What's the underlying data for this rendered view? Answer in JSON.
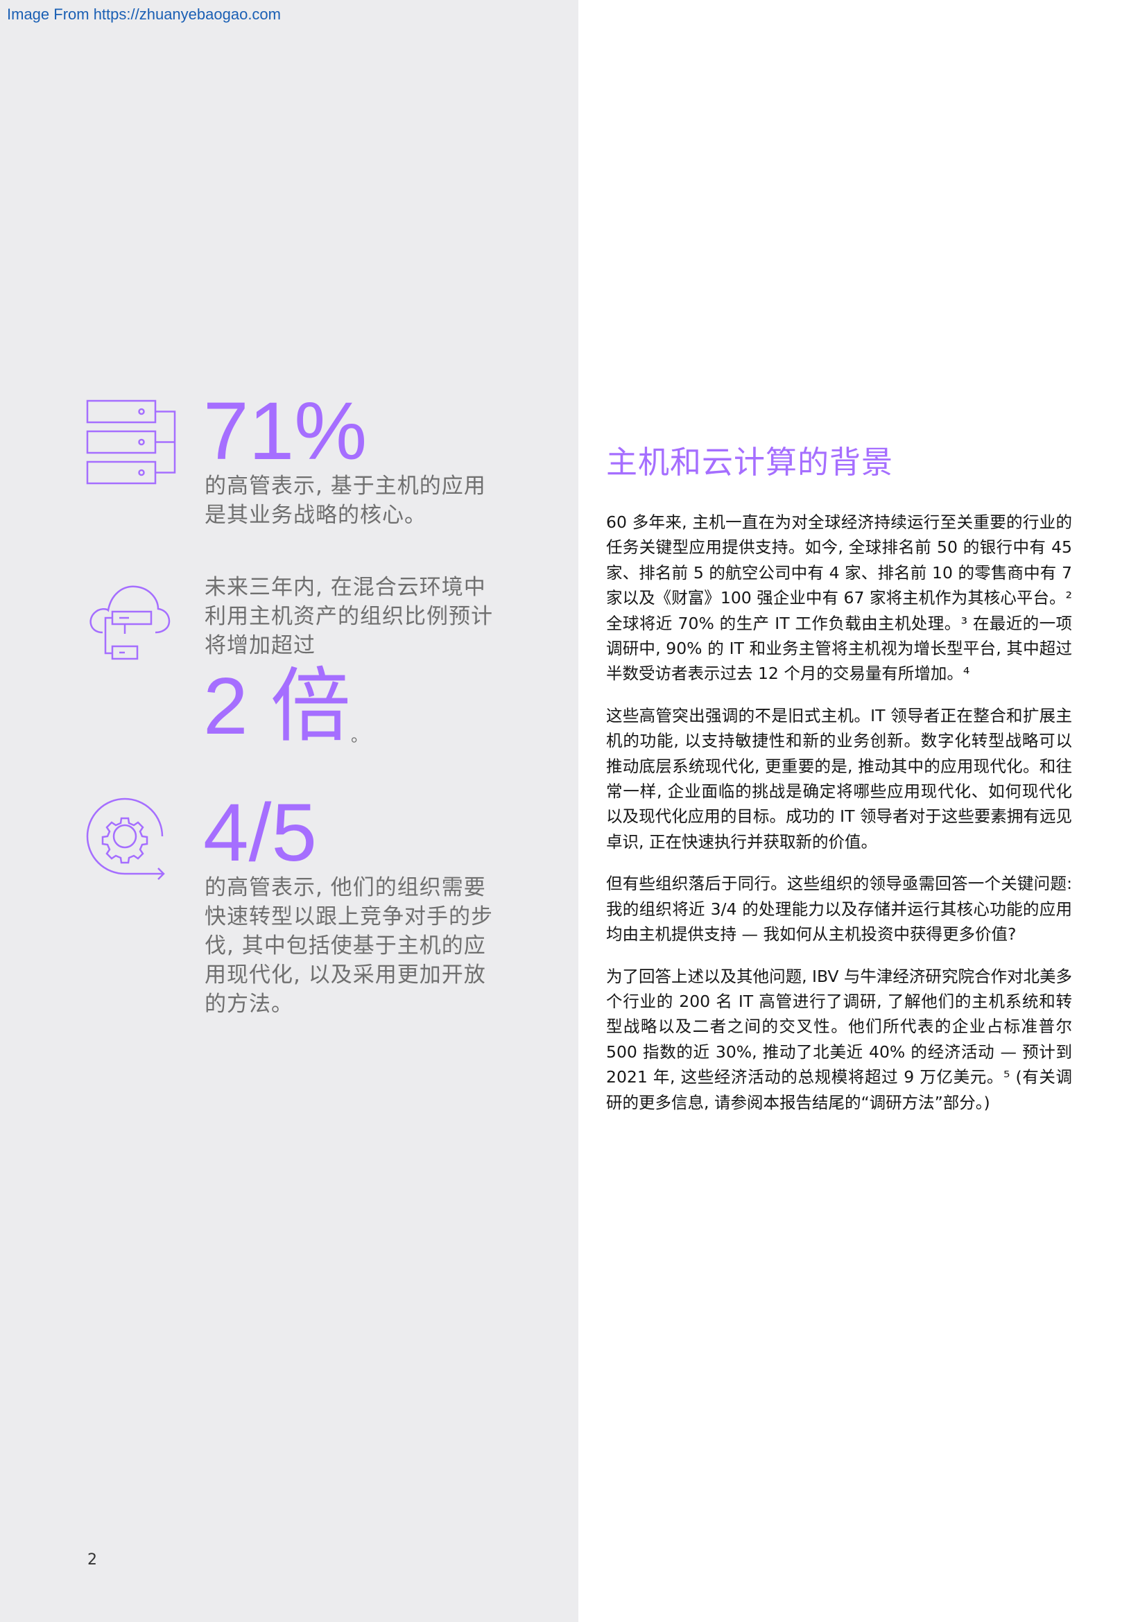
{
  "header": {
    "source_link": "Image From https://zhuanyebaogao.com"
  },
  "stats": {
    "stat1": {
      "value": "71%",
      "text_line1": "的高管表示, 基于主机的应用",
      "text_line2": "是其业务战略的核心。"
    },
    "stat2": {
      "text_line1": "未来三年内, 在混合云环境中",
      "text_line2": "利用主机资产的组织比例预计",
      "text_line3": "将增加超过",
      "value": "2 倍",
      "suffix": "。"
    },
    "stat3": {
      "value": "4/5",
      "text_line1": "的高管表示, 他们的组织需要",
      "text_line2": "快速转型以跟上竞争对手的步",
      "text_line3": "伐, 其中包括使基于主机的应",
      "text_line4": "用现代化, 以及采用更加开放",
      "text_line5": "的方法。"
    }
  },
  "icons": [
    "server-rack-icon",
    "cloud-server-icon",
    "gear-cycle-icon"
  ],
  "article": {
    "title": "主机和云计算的背景",
    "paragraphs": [
      "60 多年来, 主机一直在为对全球经济持续运行至关重要的行业的任务关键型应用提供支持。如今, 全球排名前 50 的银行中有 45 家、排名前 5 的航空公司中有 4 家、排名前 10 的零售商中有 7 家以及《财富》100 强企业中有 67 家将主机作为其核心平台。² 全球将近 70% 的生产 IT 工作负载由主机处理。³ 在最近的一项调研中, 90% 的 IT 和业务主管将主机视为增长型平台, 其中超过半数受访者表示过去 12 个月的交易量有所增加。⁴",
      "这些高管突出强调的不是旧式主机。IT 领导者正在整合和扩展主机的功能, 以支持敏捷性和新的业务创新。数字化转型战略可以推动底层系统现代化, 更重要的是, 推动其中的应用现代化。和往常一样, 企业面临的挑战是确定将哪些应用现代化、如何现代化以及现代化应用的目标。成功的 IT 领导者对于这些要素拥有远见卓识, 正在快速执行并获取新的价值。",
      "但有些组织落后于同行。这些组织的领导亟需回答一个关键问题: 我的组织将近 3/4 的处理能力以及存储并运行其核心功能的应用均由主机提供支持 — 我如何从主机投资中获得更多价值?",
      "为了回答上述以及其他问题, IBV 与牛津经济研究院合作对北美多个行业的 200 名 IT 高管进行了调研, 了解他们的主机系统和转型战略以及二者之间的交叉性。他们所代表的企业占标准普尔 500 指数的近 30%, 推动了北美近 40% 的经济活动 — 预计到 2021 年, 这些经济活动的总规模将超过 9 万亿美元。⁵ (有关调研的更多信息, 请参阅本报告结尾的“调研方法”部分。)"
    ]
  },
  "footer": {
    "page_number": "2"
  }
}
